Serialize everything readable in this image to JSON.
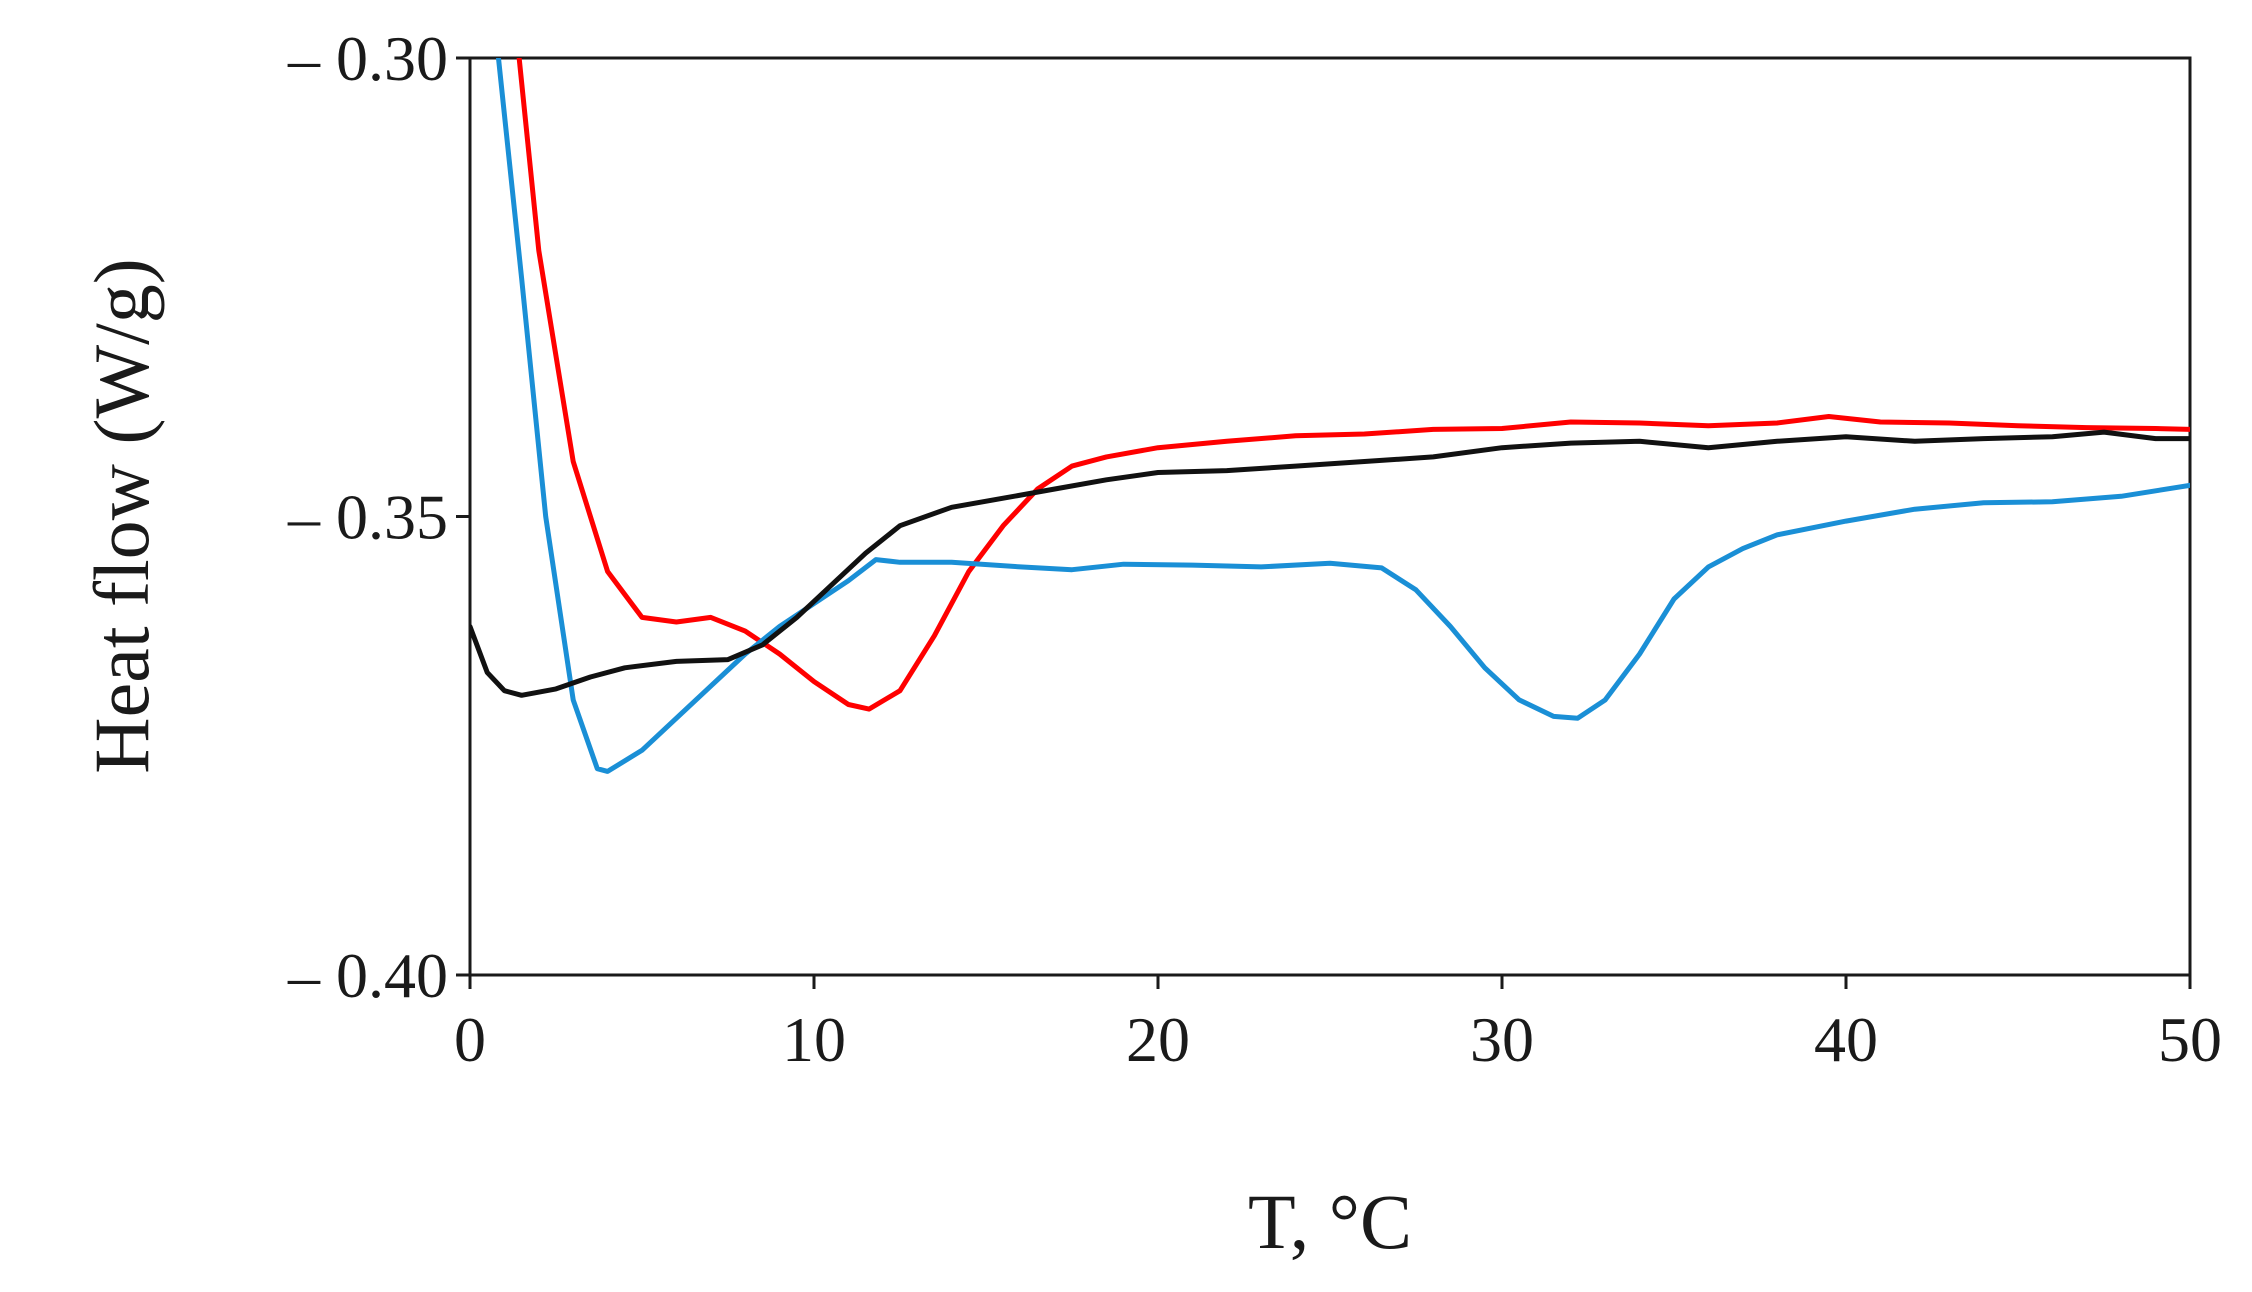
{
  "chart_data": {
    "type": "line",
    "title": "",
    "xlabel": "T, °C",
    "ylabel": "Heat flow (W/g)",
    "xlim": [
      0,
      50
    ],
    "ylim": [
      -0.4,
      -0.3
    ],
    "grid": false,
    "xticks": [
      0,
      10,
      20,
      30,
      40,
      50
    ],
    "xtick_labels": [
      "0",
      "10",
      "20",
      "30",
      "40",
      "50"
    ],
    "yticks": [
      -0.3,
      -0.35,
      -0.4
    ],
    "ytick_labels": [
      "– 0.30",
      "– 0.35",
      "– 0.40"
    ],
    "series": [
      {
        "name": "red",
        "color": "#ff0000",
        "points": [
          [
            1.4,
            -0.299
          ],
          [
            2.0,
            -0.321
          ],
          [
            3.0,
            -0.344
          ],
          [
            4.0,
            -0.356
          ],
          [
            5.0,
            -0.361
          ],
          [
            6.0,
            -0.3615
          ],
          [
            7.0,
            -0.361
          ],
          [
            8.0,
            -0.3625
          ],
          [
            9.0,
            -0.365
          ],
          [
            10.0,
            -0.368
          ],
          [
            11.0,
            -0.3705
          ],
          [
            11.6,
            -0.371
          ],
          [
            12.5,
            -0.369
          ],
          [
            13.5,
            -0.363
          ],
          [
            14.5,
            -0.356
          ],
          [
            15.5,
            -0.351
          ],
          [
            16.5,
            -0.347
          ],
          [
            17.5,
            -0.3445
          ],
          [
            18.5,
            -0.3435
          ],
          [
            20.0,
            -0.3425
          ],
          [
            22.0,
            -0.3418
          ],
          [
            24.0,
            -0.3412
          ],
          [
            26.0,
            -0.341
          ],
          [
            28.0,
            -0.3405
          ],
          [
            30.0,
            -0.3404
          ],
          [
            32.0,
            -0.3397
          ],
          [
            34.0,
            -0.3398
          ],
          [
            36.0,
            -0.3401
          ],
          [
            38.0,
            -0.3398
          ],
          [
            39.5,
            -0.3391
          ],
          [
            41.0,
            -0.3397
          ],
          [
            43.0,
            -0.3398
          ],
          [
            45.0,
            -0.3401
          ],
          [
            47.0,
            -0.3403
          ],
          [
            49.0,
            -0.3404
          ],
          [
            50.0,
            -0.3405
          ]
        ]
      },
      {
        "name": "blue",
        "color": "#1a8fd6",
        "points": [
          [
            0.8,
            -0.299
          ],
          [
            1.5,
            -0.324
          ],
          [
            2.2,
            -0.35
          ],
          [
            3.0,
            -0.37
          ],
          [
            3.7,
            -0.3775
          ],
          [
            4.0,
            -0.3778
          ],
          [
            5.0,
            -0.3755
          ],
          [
            6.0,
            -0.372
          ],
          [
            7.0,
            -0.3685
          ],
          [
            8.0,
            -0.365
          ],
          [
            9.0,
            -0.362
          ],
          [
            10.0,
            -0.3595
          ],
          [
            11.0,
            -0.357
          ],
          [
            11.8,
            -0.3547
          ],
          [
            12.5,
            -0.355
          ],
          [
            14.0,
            -0.355
          ],
          [
            16.0,
            -0.3555
          ],
          [
            17.5,
            -0.3558
          ],
          [
            19.0,
            -0.3552
          ],
          [
            21.0,
            -0.3553
          ],
          [
            23.0,
            -0.3555
          ],
          [
            25.0,
            -0.3551
          ],
          [
            26.5,
            -0.3556
          ],
          [
            27.5,
            -0.358
          ],
          [
            28.5,
            -0.362
          ],
          [
            29.5,
            -0.3665
          ],
          [
            30.5,
            -0.37
          ],
          [
            31.5,
            -0.3718
          ],
          [
            32.2,
            -0.372
          ],
          [
            33.0,
            -0.37
          ],
          [
            34.0,
            -0.365
          ],
          [
            35.0,
            -0.359
          ],
          [
            36.0,
            -0.3555
          ],
          [
            37.0,
            -0.3535
          ],
          [
            38.0,
            -0.352
          ],
          [
            40.0,
            -0.3505
          ],
          [
            42.0,
            -0.3492
          ],
          [
            44.0,
            -0.3485
          ],
          [
            46.0,
            -0.3484
          ],
          [
            48.0,
            -0.3478
          ],
          [
            50.0,
            -0.3466
          ]
        ]
      },
      {
        "name": "black",
        "color": "#111111",
        "points": [
          [
            0.0,
            -0.362
          ],
          [
            0.5,
            -0.367
          ],
          [
            1.0,
            -0.369
          ],
          [
            1.5,
            -0.3695
          ],
          [
            2.5,
            -0.3688
          ],
          [
            3.5,
            -0.3675
          ],
          [
            4.5,
            -0.3665
          ],
          [
            6.0,
            -0.3658
          ],
          [
            7.5,
            -0.3656
          ],
          [
            8.5,
            -0.364
          ],
          [
            9.5,
            -0.361
          ],
          [
            10.5,
            -0.3575
          ],
          [
            11.5,
            -0.354
          ],
          [
            12.5,
            -0.351
          ],
          [
            14.0,
            -0.349
          ],
          [
            15.5,
            -0.348
          ],
          [
            17.0,
            -0.347
          ],
          [
            18.5,
            -0.346
          ],
          [
            20.0,
            -0.3452
          ],
          [
            22.0,
            -0.345
          ],
          [
            24.0,
            -0.3445
          ],
          [
            26.0,
            -0.344
          ],
          [
            28.0,
            -0.3435
          ],
          [
            30.0,
            -0.3425
          ],
          [
            32.0,
            -0.342
          ],
          [
            34.0,
            -0.3418
          ],
          [
            36.0,
            -0.3425
          ],
          [
            38.0,
            -0.3418
          ],
          [
            40.0,
            -0.3413
          ],
          [
            42.0,
            -0.3418
          ],
          [
            44.0,
            -0.3415
          ],
          [
            46.0,
            -0.3413
          ],
          [
            47.5,
            -0.3408
          ],
          [
            49.0,
            -0.3415
          ],
          [
            50.0,
            -0.3415
          ]
        ]
      }
    ]
  }
}
